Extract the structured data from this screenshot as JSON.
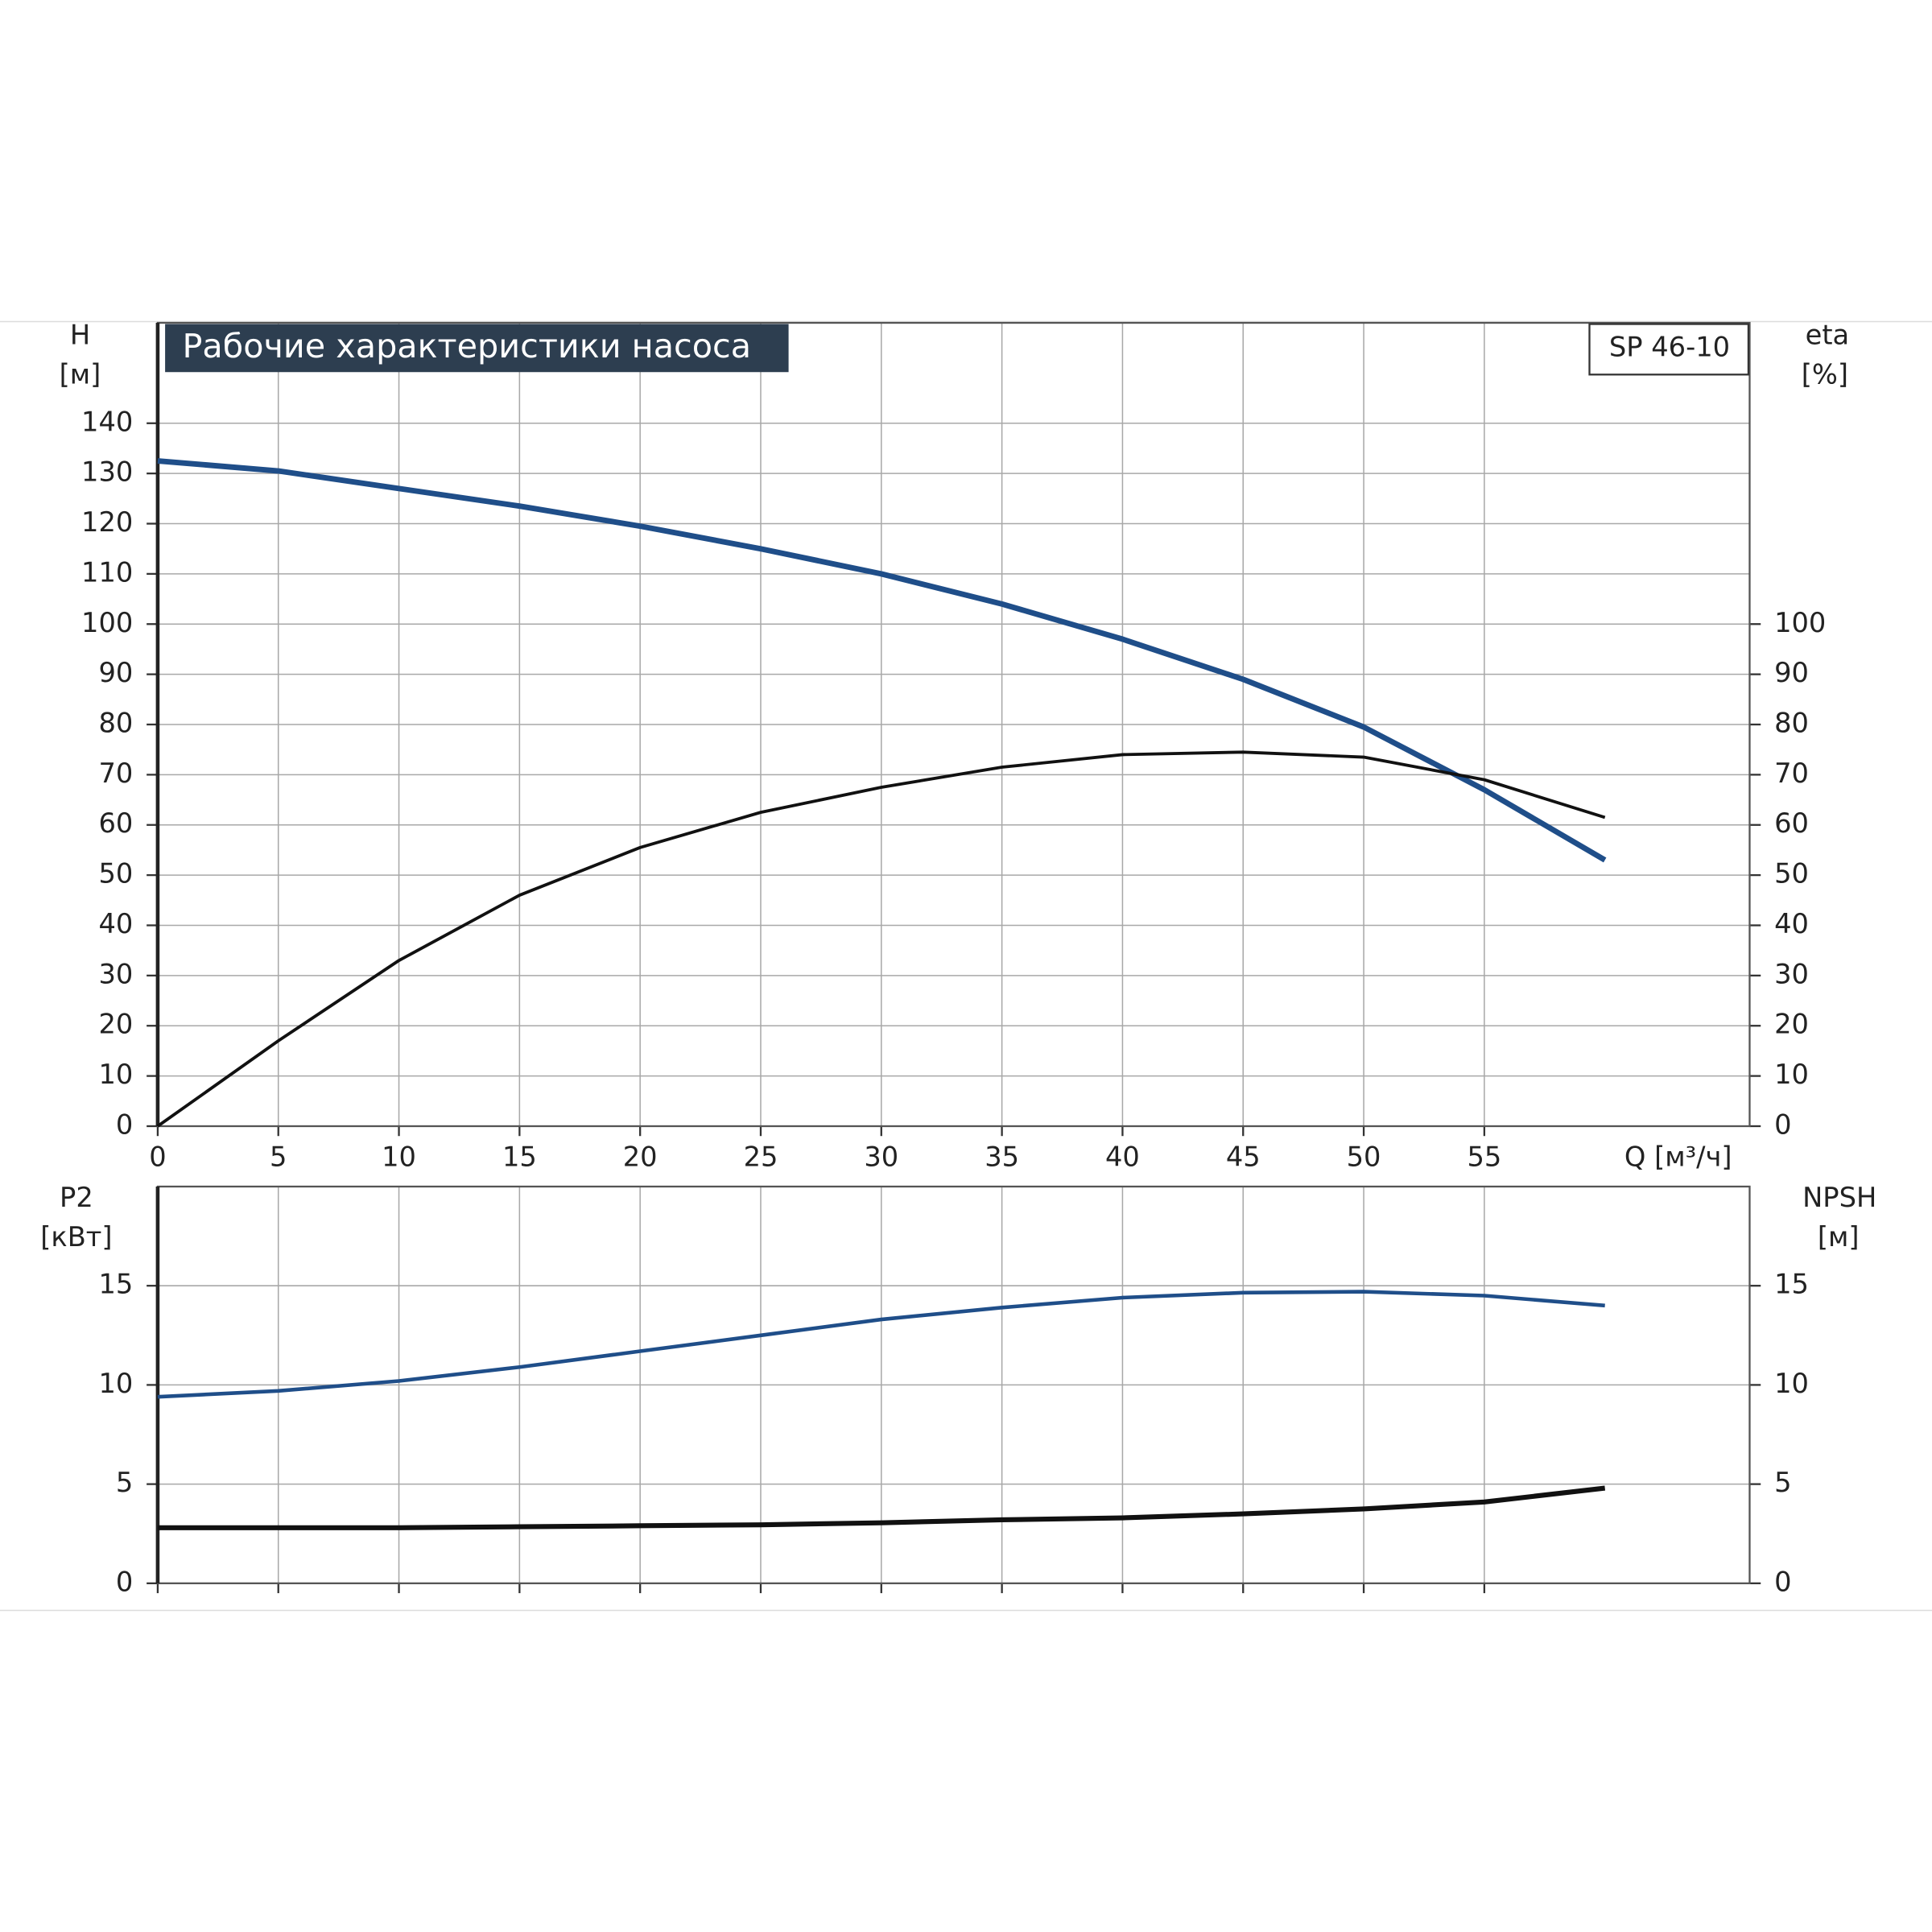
{
  "chart_data": [
    {
      "type": "line",
      "title": "Рабочие характеристики насоса",
      "model": "SP 46-10",
      "ylabel": "H",
      "yunit": "[м]",
      "y2label": "eta",
      "y2unit": "[%]",
      "xlabel": "Q [м³/ч]",
      "x": [
        0,
        5,
        10,
        15,
        20,
        25,
        30,
        35,
        40,
        45,
        50,
        55,
        60
      ],
      "series": [
        {
          "color": "#1f4e89",
          "values": [
            132.5,
            130.5,
            127,
            123.5,
            119.5,
            115,
            110,
            104,
            97,
            89,
            79.5,
            67,
            53
          ]
        },
        {
          "color": "#111111",
          "axis": "y2",
          "values": [
            0,
            17,
            33,
            46,
            55.5,
            62.5,
            67.5,
            71.5,
            74,
            74.5,
            73.5,
            69,
            61.5
          ]
        }
      ],
      "xlim": [
        0,
        66
      ],
      "xticks": [
        0,
        5,
        10,
        15,
        20,
        25,
        30,
        35,
        40,
        45,
        50,
        55
      ],
      "ylim": [
        0,
        160
      ],
      "yticks": [
        0,
        10,
        20,
        30,
        40,
        50,
        60,
        70,
        80,
        90,
        100,
        110,
        120,
        130,
        140
      ],
      "y2lim": [
        0,
        160
      ],
      "y2ticks": [
        0,
        10,
        20,
        30,
        40,
        50,
        60,
        70,
        80,
        90,
        100
      ],
      "grid": true
    },
    {
      "type": "line",
      "ylabel": "P2",
      "yunit": "[кВт]",
      "y2label": "NPSH",
      "y2unit": "[м]",
      "x": [
        0,
        5,
        10,
        15,
        20,
        25,
        30,
        35,
        40,
        45,
        50,
        55,
        60
      ],
      "series": [
        {
          "color": "#1f4e89",
          "values": [
            9.4,
            9.7,
            10.2,
            10.9,
            11.7,
            12.5,
            13.3,
            13.9,
            14.4,
            14.65,
            14.7,
            14.5,
            14.0
          ]
        },
        {
          "color": "#111111",
          "axis": "y2",
          "values": [
            2.8,
            2.8,
            2.8,
            2.85,
            2.9,
            2.95,
            3.05,
            3.2,
            3.3,
            3.5,
            3.75,
            4.1,
            4.8
          ]
        }
      ],
      "xlim": [
        0,
        66
      ],
      "ylim": [
        0,
        20
      ],
      "yticks": [
        0,
        5,
        10,
        15
      ],
      "y2lim": [
        0,
        20
      ],
      "y2ticks": [
        0,
        5,
        10,
        15
      ],
      "grid": true
    }
  ]
}
